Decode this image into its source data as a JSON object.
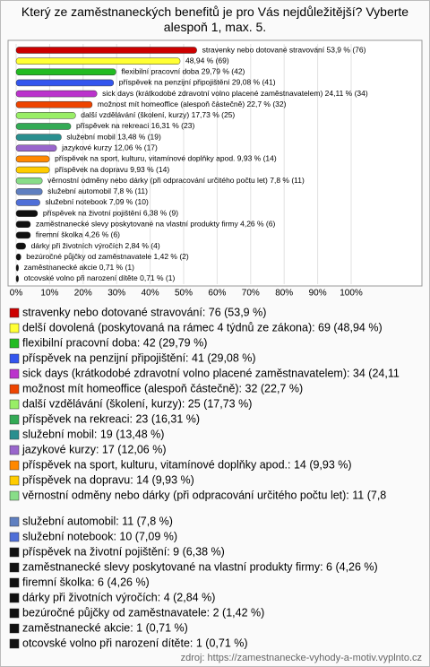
{
  "chart_data": {
    "type": "bar",
    "orientation": "horizontal",
    "title": "Který ze zaměstnaneckých benefitů je pro Vás nejdůležitější? Vyberte alespoň 1, max. 5.",
    "values": [
      53.9,
      48.94,
      29.79,
      29.08,
      24.11,
      22.7,
      17.73,
      16.31,
      13.48,
      12.06,
      9.93,
      9.93,
      7.8,
      7.8,
      7.09,
      6.38,
      4.26,
      4.26,
      2.84,
      1.42,
      0.71,
      0.71
    ],
    "value_labels": [
      "stravenky nebo dotované stravování 53,9 % (76)",
      "48,94 % (69)",
      "flexibilní pracovní doba 29,79 % (42)",
      "příspěvek na penzijní připojištění 29,08 % (41)",
      "sick days (krátkodobé zdravotní volno placené zaměstnavatelem) 24,11 % (34)",
      "možnost mít homeoffice (alespoň částečně) 22,7 % (32)",
      "další vzdělávání (školení, kurzy) 17,73 % (25)",
      "příspěvek na rekreaci 16,31 % (23)",
      "služební mobil 13,48 % (19)",
      "jazykové kurzy 12,06 % (17)",
      "příspěvek na sport, kulturu, vitamínové doplňky apod. 9,93 % (14)",
      "příspěvek na dopravu 9,93 % (14)",
      "věrnostní odměny nebo dárky (při odpracování určitého počtu let) 7,8 % (11)",
      "služební automobil 7,8 % (11)",
      "služební notebook 7,09 % (10)",
      "příspěvek na životní pojištění 6,38 % (9)",
      "zaměstnanecké slevy poskytované na vlastní produkty firmy 4,26 % (6)",
      "firemní školka 4,26 % (6)",
      "dárky při životních výročích 2,84 % (4)",
      "bezúročné půjčky od zaměstnavatele 1,42 % (2)",
      "zaměstnanecké akcie 0,71 % (1)",
      "otcovské volno při narození dítěte 0,71 % (1)"
    ],
    "legend_labels": [
      "stravenky nebo dotované stravování: 76 (53,9 %)",
      "delší dovolená (poskytovaná na rámec 4 týdnů ze zákona): 69 (48,94 %)",
      "flexibilní pracovní doba: 42 (29,79 %)",
      "příspěvek na penzijní připojištění: 41 (29,08 %)",
      "sick days (krátkodobé zdravotní volno placené zaměstnavatelem): 34 (24,11",
      "možnost mít homeoffice (alespoň částečně): 32 (22,7 %)",
      "další vzdělávání (školení, kurzy): 25 (17,73 %)",
      "příspěvek na rekreaci: 23 (16,31 %)",
      "služební mobil: 19 (13,48 %)",
      "jazykové kurzy: 17 (12,06 %)",
      "příspěvek na sport, kulturu, vitamínové doplňky apod.: 14 (9,93 %)",
      "příspěvek na dopravu: 14 (9,93 %)",
      "věrnostní odměny nebo dárky (při odpracování určitého počtu let): 11 (7,8",
      "služební automobil: 11 (7,8 %)",
      "služební notebook: 10 (7,09 %)",
      "příspěvek na životní pojištění: 9 (6,38 %)",
      "zaměstnanecké slevy poskytované na vlastní produkty firmy: 6 (4,26 %)",
      "firemní školka: 6 (4,26 %)",
      "dárky při životních výročích: 4 (2,84 %)",
      "bezúročné půjčky od zaměstnavatele: 2 (1,42 %)",
      "zaměstnanecké akcie: 1 (0,71 %)",
      "otcovské volno při narození dítěte: 1 (0,71 %)"
    ],
    "colors": [
      "#cc0000",
      "#ffff33",
      "#22bb22",
      "#3355ee",
      "#bb33cc",
      "#ee4400",
      "#99ee66",
      "#33aa55",
      "#2a8f8f",
      "#9966cc",
      "#ff8800",
      "#ffcc00",
      "#88dd88",
      "#5f7fc0",
      "#4f6fd8",
      "#111111",
      "#111111",
      "#111111",
      "#111111",
      "#111111",
      "#111111",
      "#111111"
    ],
    "xlim": [
      0,
      100
    ],
    "xticks": [
      {
        "value": 0,
        "label": "0%"
      },
      {
        "value": 10,
        "label": "10%"
      },
      {
        "value": 20,
        "label": "20%"
      },
      {
        "value": 30,
        "label": "30%"
      },
      {
        "value": 40,
        "label": "40%"
      },
      {
        "value": 50,
        "label": "50%"
      },
      {
        "value": 60,
        "label": "60%"
      },
      {
        "value": 70,
        "label": "70%"
      },
      {
        "value": 80,
        "label": "80%"
      },
      {
        "value": 90,
        "label": "90%"
      },
      {
        "value": 100,
        "label": "100%"
      }
    ],
    "grid": true,
    "source": "zdroj: https://zamestnanecke-vyhody-a-motiv.vyplnto.cz"
  }
}
